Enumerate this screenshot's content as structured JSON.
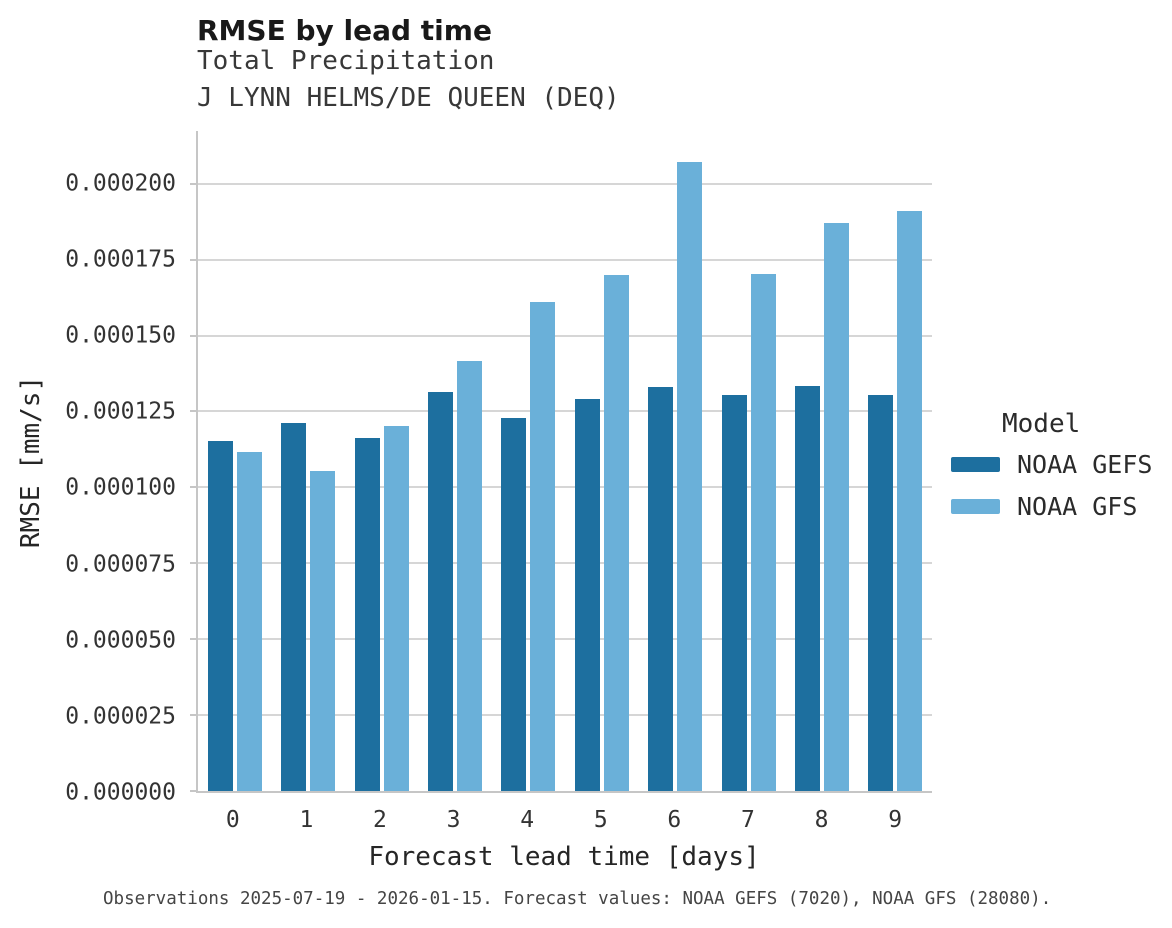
{
  "header": {
    "title": "RMSE by lead time",
    "subtitle": "Total Precipitation",
    "station": "J LYNN HELMS/DE QUEEN (DEQ)"
  },
  "legend": {
    "title": "Model",
    "items": [
      {
        "label": "NOAA GEFS",
        "color": "#1d6f9f"
      },
      {
        "label": "NOAA GFS",
        "color": "#6ab0d9"
      }
    ]
  },
  "footer": {
    "caption": "Observations 2025-07-19 - 2026-01-15. Forecast values: NOAA GEFS (7020), NOAA GFS (28080)."
  },
  "chart_data": {
    "type": "bar",
    "title": "RMSE by lead time",
    "subtitle": "Total Precipitation",
    "annotation": "J LYNN HELMS/DE QUEEN (DEQ)",
    "xlabel": "Forecast lead time [days]",
    "ylabel": "RMSE [mm/s]",
    "categories": [
      0,
      1,
      2,
      3,
      4,
      5,
      6,
      7,
      8,
      9
    ],
    "series": [
      {
        "name": "NOAA GEFS",
        "color": "#1d6f9f",
        "values": [
          0.0001152,
          0.0001212,
          0.0001163,
          0.0001315,
          0.000123,
          0.0001291,
          0.0001332,
          0.0001305,
          0.0001333,
          0.0001303
        ]
      },
      {
        "name": "NOAA GFS",
        "color": "#6ab0d9",
        "values": [
          0.0001116,
          0.0001055,
          0.0001203,
          0.0001416,
          0.0001611,
          0.0001699,
          0.000207,
          0.0001703,
          0.0001871,
          0.000191
        ]
      }
    ],
    "ylim": [
      0,
      0.00021735
    ],
    "yticks": [
      0.0,
      2.5e-05,
      5e-05,
      7.5e-05,
      0.0001,
      0.000125,
      0.00015,
      0.000175,
      0.0002
    ],
    "ytick_labels": [
      "0.000000",
      "0.000025",
      "0.000050",
      "0.000075",
      "0.000100",
      "0.000125",
      "0.000150",
      "0.000175",
      "0.000200"
    ],
    "grid": true,
    "legend_position": "right",
    "legend_title": "Model"
  }
}
